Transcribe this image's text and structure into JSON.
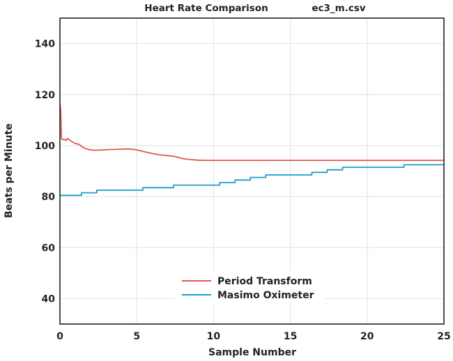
{
  "chart_data": {
    "type": "line",
    "title": "Heart Rate Comparison",
    "subtitle": "ec3_m.csv",
    "xlabel": "Sample Number",
    "ylabel": "Beats per Minute",
    "xlim": [
      0,
      25
    ],
    "ylim": [
      30,
      150
    ],
    "xticks": [
      0,
      5,
      10,
      15,
      20,
      25
    ],
    "yticks": [
      40,
      60,
      80,
      100,
      120,
      140
    ],
    "grid": true,
    "legend_position": "bottom-center",
    "series": [
      {
        "name": "Period Transform",
        "color": "#e05a47",
        "x": [
          0,
          0.05,
          0.1,
          0.2,
          0.3,
          0.4,
          0.5,
          0.6,
          0.8,
          1.0,
          1.2,
          1.3,
          1.5,
          1.7,
          1.9,
          2.2,
          2.5,
          3.0,
          3.5,
          4.0,
          4.5,
          5.0,
          5.5,
          6.0,
          6.5,
          7.0,
          7.5,
          8.0,
          8.5,
          9.0,
          9.5,
          10.0,
          15.0,
          20.0,
          25.0
        ],
        "y": [
          116.5,
          114,
          102.8,
          102.3,
          102.5,
          102.0,
          102.8,
          102.3,
          101.5,
          100.8,
          100.6,
          100.2,
          99.3,
          98.8,
          98.4,
          98.2,
          98.2,
          98.4,
          98.5,
          98.6,
          98.7,
          98.3,
          97.6,
          96.9,
          96.4,
          96.1,
          95.7,
          94.9,
          94.5,
          94.3,
          94.2,
          94.2,
          94.2,
          94.2,
          94.2
        ]
      },
      {
        "name": "Masimo Oximeter",
        "color": "#1a9ccf",
        "x": [
          0,
          1.4,
          1.4,
          2.4,
          2.4,
          5.4,
          5.4,
          7.4,
          7.4,
          10.4,
          10.4,
          11.4,
          11.4,
          12.4,
          12.4,
          13.4,
          13.4,
          16.4,
          16.4,
          17.4,
          17.4,
          18.4,
          18.4,
          22.4,
          22.4,
          25
        ],
        "y": [
          80.5,
          80.5,
          81.5,
          81.5,
          82.5,
          82.5,
          83.5,
          83.5,
          84.5,
          84.5,
          85.5,
          85.5,
          86.5,
          86.5,
          87.5,
          87.5,
          88.5,
          88.5,
          89.5,
          89.5,
          90.5,
          90.5,
          91.5,
          91.5,
          92.5,
          92.5
        ]
      }
    ]
  }
}
